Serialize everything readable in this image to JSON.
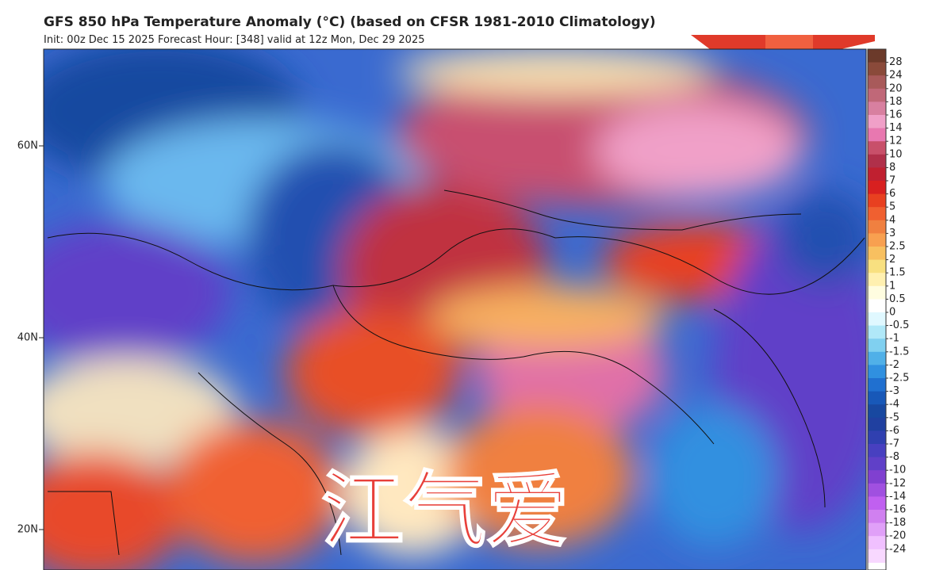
{
  "header": {
    "title": "GFS 850 hPa Temperature Anomaly (°C) (based on CFSR 1981-2010 Climatology)",
    "subtitle": "Init: 00z Dec 15 2025   Forecast Hour: [348]   valid at 12z Mon, Dec 29 2025"
  },
  "map": {
    "lat_labels": [
      "60N",
      "40N",
      "20N"
    ],
    "watermark": "江气爱"
  },
  "colorbar": {
    "labels": [
      28,
      24,
      20,
      18,
      16,
      14,
      12,
      10,
      8,
      7,
      6,
      5,
      4,
      3,
      2.5,
      2,
      1.5,
      1,
      0.5,
      0,
      -0.5,
      -1,
      -1.5,
      -2,
      -2.5,
      -3,
      -4,
      -5,
      -6,
      -7,
      -8,
      -10,
      -12,
      -14,
      -16,
      -18,
      -20,
      -24
    ],
    "colors": [
      "#6b3a2a",
      "#8a4a3a",
      "#a85a5a",
      "#c06878",
      "#d880a0",
      "#f0a0c8",
      "#e878b0",
      "#c8506a",
      "#b0304a",
      "#c02030",
      "#d82020",
      "#e84020",
      "#f06030",
      "#f08040",
      "#f8a050",
      "#f8c060",
      "#f8e080",
      "#fff0b0",
      "#fffde0",
      "#ffffff",
      "#e0f8ff",
      "#b0e8f8",
      "#80d0f0",
      "#50b0e8",
      "#3090e0",
      "#2070d0",
      "#1858b8",
      "#1848a0",
      "#2040a0",
      "#3040b0",
      "#4840c0",
      "#6040c8",
      "#8040d0",
      "#a050e0",
      "#c060f0",
      "#d080f0",
      "#e0a0f8",
      "#f0c0ff",
      "#f8d8ff"
    ]
  }
}
